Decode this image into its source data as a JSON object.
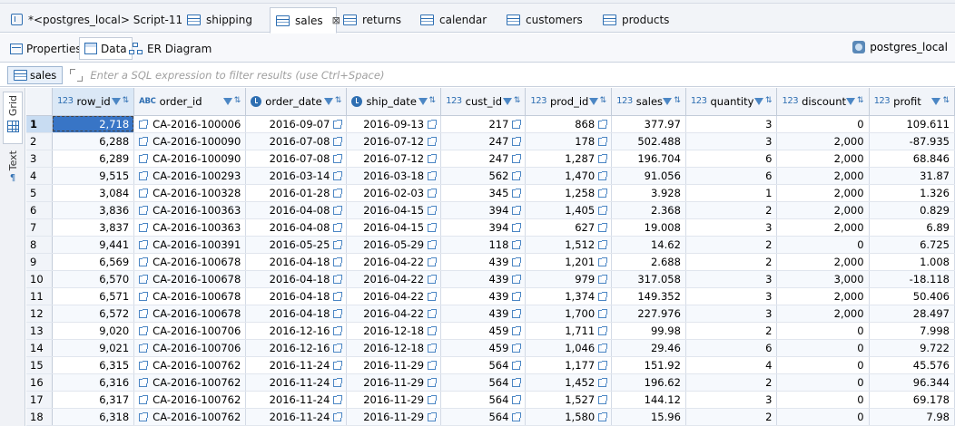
{
  "tabs": [
    {
      "label": "*<postgres_local> Script-11",
      "icon": "script-icon",
      "active": false
    },
    {
      "label": "shipping",
      "icon": "table-icon",
      "active": false
    },
    {
      "label": "sales",
      "icon": "table-icon",
      "active": true
    },
    {
      "label": "returns",
      "icon": "table-icon",
      "active": false
    },
    {
      "label": "calendar",
      "icon": "table-icon",
      "active": false
    },
    {
      "label": "customers",
      "icon": "table-icon",
      "active": false
    },
    {
      "label": "products",
      "icon": "table-icon",
      "active": false
    }
  ],
  "subtabs": {
    "properties": "Properties",
    "data": "Data",
    "er": "ER Diagram"
  },
  "connection": "postgres_local",
  "filter": {
    "table": "sales",
    "placeholder": "Enter a SQL expression to filter results (use Ctrl+Space)"
  },
  "side_tabs": {
    "grid": "Grid",
    "text": "Text"
  },
  "columns": [
    {
      "name": "row_id",
      "type": "123"
    },
    {
      "name": "order_id",
      "type": "ABC"
    },
    {
      "name": "order_date",
      "type": "date"
    },
    {
      "name": "ship_date",
      "type": "date"
    },
    {
      "name": "cust_id",
      "type": "123"
    },
    {
      "name": "prod_id",
      "type": "123"
    },
    {
      "name": "sales",
      "type": "123"
    },
    {
      "name": "quantity",
      "type": "123"
    },
    {
      "name": "discount",
      "type": "123"
    },
    {
      "name": "profit",
      "type": "123"
    }
  ],
  "rows": [
    [
      "1",
      "2,718",
      "CA-2016-100006",
      "2016-09-07",
      "2016-09-13",
      "217",
      "868",
      "377.97",
      "3",
      "0",
      "109.611"
    ],
    [
      "2",
      "6,288",
      "CA-2016-100090",
      "2016-07-08",
      "2016-07-12",
      "247",
      "178",
      "502.488",
      "3",
      "2,000",
      "-87.935"
    ],
    [
      "3",
      "6,289",
      "CA-2016-100090",
      "2016-07-08",
      "2016-07-12",
      "247",
      "1,287",
      "196.704",
      "6",
      "2,000",
      "68.846"
    ],
    [
      "4",
      "9,515",
      "CA-2016-100293",
      "2016-03-14",
      "2016-03-18",
      "562",
      "1,470",
      "91.056",
      "6",
      "2,000",
      "31.87"
    ],
    [
      "5",
      "3,084",
      "CA-2016-100328",
      "2016-01-28",
      "2016-02-03",
      "345",
      "1,258",
      "3.928",
      "1",
      "2,000",
      "1.326"
    ],
    [
      "6",
      "3,836",
      "CA-2016-100363",
      "2016-04-08",
      "2016-04-15",
      "394",
      "1,405",
      "2.368",
      "2",
      "2,000",
      "0.829"
    ],
    [
      "7",
      "3,837",
      "CA-2016-100363",
      "2016-04-08",
      "2016-04-15",
      "394",
      "627",
      "19.008",
      "3",
      "2,000",
      "6.89"
    ],
    [
      "8",
      "9,441",
      "CA-2016-100391",
      "2016-05-25",
      "2016-05-29",
      "118",
      "1,512",
      "14.62",
      "2",
      "0",
      "6.725"
    ],
    [
      "9",
      "6,569",
      "CA-2016-100678",
      "2016-04-18",
      "2016-04-22",
      "439",
      "1,201",
      "2.688",
      "2",
      "2,000",
      "1.008"
    ],
    [
      "10",
      "6,570",
      "CA-2016-100678",
      "2016-04-18",
      "2016-04-22",
      "439",
      "979",
      "317.058",
      "3",
      "3,000",
      "-18.118"
    ],
    [
      "11",
      "6,571",
      "CA-2016-100678",
      "2016-04-18",
      "2016-04-22",
      "439",
      "1,374",
      "149.352",
      "3",
      "2,000",
      "50.406"
    ],
    [
      "12",
      "6,572",
      "CA-2016-100678",
      "2016-04-18",
      "2016-04-22",
      "439",
      "1,700",
      "227.976",
      "3",
      "2,000",
      "28.497"
    ],
    [
      "13",
      "9,020",
      "CA-2016-100706",
      "2016-12-16",
      "2016-12-18",
      "459",
      "1,711",
      "99.98",
      "2",
      "0",
      "7.998"
    ],
    [
      "14",
      "9,021",
      "CA-2016-100706",
      "2016-12-16",
      "2016-12-18",
      "459",
      "1,046",
      "29.46",
      "6",
      "0",
      "9.722"
    ],
    [
      "15",
      "6,315",
      "CA-2016-100762",
      "2016-11-24",
      "2016-11-29",
      "564",
      "1,177",
      "151.92",
      "4",
      "0",
      "45.576"
    ],
    [
      "16",
      "6,316",
      "CA-2016-100762",
      "2016-11-24",
      "2016-11-29",
      "564",
      "1,452",
      "196.62",
      "2",
      "0",
      "96.344"
    ],
    [
      "17",
      "6,317",
      "CA-2016-100762",
      "2016-11-24",
      "2016-11-29",
      "564",
      "1,527",
      "144.12",
      "3",
      "0",
      "69.178"
    ],
    [
      "18",
      "6,318",
      "CA-2016-100762",
      "2016-11-24",
      "2016-11-29",
      "564",
      "1,580",
      "15.96",
      "2",
      "0",
      "7.98"
    ]
  ]
}
